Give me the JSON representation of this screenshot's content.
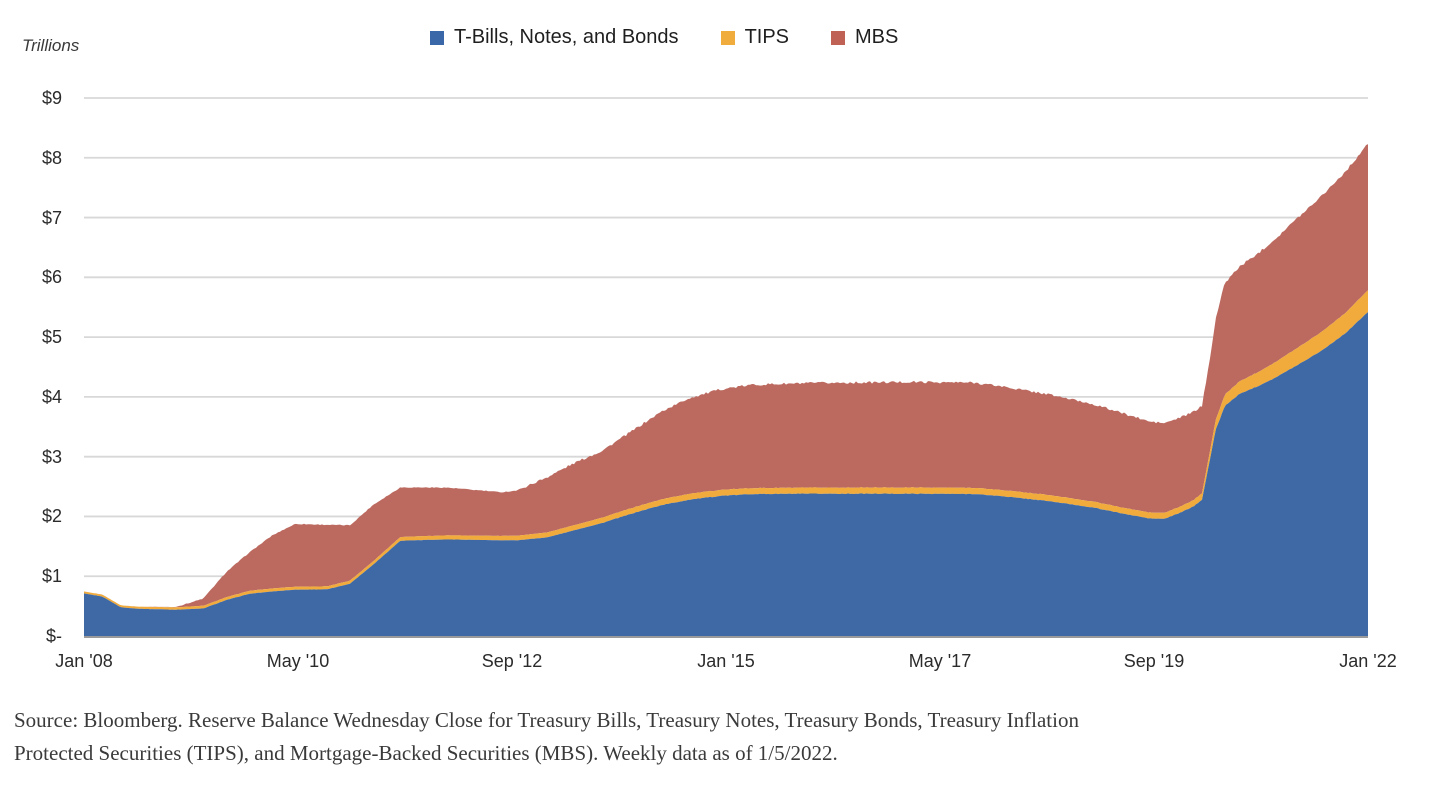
{
  "units_label": "Trillions",
  "legend": [
    {
      "label": "T-Bills, Notes, and Bonds",
      "color": "#3a67a8"
    },
    {
      "label": "TIPS",
      "color": "#f0ac3c"
    },
    {
      "label": "MBS",
      "color": "#c06156"
    }
  ],
  "y_axis": {
    "labels": [
      "$9",
      "$8",
      "$7",
      "$6",
      "$5",
      "$4",
      "$3",
      "$2",
      "$1",
      "$-"
    ],
    "values": [
      9,
      8,
      7,
      6,
      5,
      4,
      3,
      2,
      1,
      0
    ]
  },
  "x_axis": {
    "labels": [
      "Jan '08",
      "May '10",
      "Sep '12",
      "Jan '15",
      "May '17",
      "Sep '19",
      "Jan '22"
    ],
    "tick_years": [
      2008.0,
      2010.333,
      2012.667,
      2015.0,
      2017.333,
      2019.667,
      2022.0
    ]
  },
  "source": {
    "line1": "Source: Bloomberg. Reserve Balance Wednesday Close for Treasury Bills, Treasury Notes, Treasury Bonds, Treasury Inflation",
    "line2": "Protected Securities (TIPS), and Mortgage-Backed Securities (MBS). Weekly data as of 1/5/2022."
  },
  "chart_data": {
    "type": "area",
    "stacked": true,
    "title": "",
    "xlabel": "",
    "ylabel": "Trillions",
    "unit": "trillions of USD",
    "xlim": [
      2008.0,
      2022.0
    ],
    "ylim": [
      0,
      9
    ],
    "grid": "horizontal",
    "legend_position": "top-center",
    "x_keypoints_decimal_year": [
      2008.0,
      2008.2,
      2008.4,
      2008.6,
      2009.0,
      2009.3,
      2009.55,
      2009.8,
      2010.05,
      2010.3,
      2010.65,
      2010.9,
      2011.15,
      2011.45,
      2011.95,
      2012.55,
      2012.72,
      2013.05,
      2013.35,
      2013.65,
      2014.0,
      2014.3,
      2014.6,
      2014.95,
      2015.3,
      2016.0,
      2017.0,
      2017.7,
      2018.0,
      2018.5,
      2019.0,
      2019.35,
      2019.62,
      2019.78,
      2019.95,
      2020.1,
      2020.19,
      2020.27,
      2020.34,
      2020.44,
      2020.6,
      2020.8,
      2021.0,
      2021.25,
      2021.5,
      2021.75,
      2022.0
    ],
    "series": [
      {
        "name": "T-Bills, Notes, and Bonds",
        "color": "#3e69a5",
        "values": [
          0.71,
          0.66,
          0.48,
          0.455,
          0.44,
          0.46,
          0.6,
          0.705,
          0.745,
          0.775,
          0.78,
          0.875,
          1.19,
          1.595,
          1.615,
          1.6,
          1.6,
          1.65,
          1.77,
          1.89,
          2.06,
          2.19,
          2.28,
          2.345,
          2.375,
          2.38,
          2.38,
          2.375,
          2.34,
          2.26,
          2.15,
          2.04,
          1.965,
          1.96,
          2.06,
          2.17,
          2.28,
          2.9,
          3.45,
          3.85,
          4.05,
          4.18,
          4.33,
          4.55,
          4.78,
          5.06,
          5.42
        ]
      },
      {
        "name": "TIPS",
        "color": "#f0ab3c",
        "values": [
          0.033,
          0.033,
          0.033,
          0.035,
          0.04,
          0.045,
          0.048,
          0.05,
          0.05,
          0.05,
          0.05,
          0.052,
          0.056,
          0.062,
          0.068,
          0.075,
          0.078,
          0.082,
          0.086,
          0.09,
          0.094,
          0.098,
          0.1,
          0.1,
          0.1,
          0.102,
          0.104,
          0.104,
          0.103,
          0.102,
          0.1,
          0.1,
          0.1,
          0.1,
          0.102,
          0.105,
          0.11,
          0.135,
          0.165,
          0.19,
          0.21,
          0.235,
          0.26,
          0.29,
          0.315,
          0.34,
          0.365
        ]
      },
      {
        "name": "MBS",
        "color": "#bc6a60",
        "values": [
          0,
          0,
          0,
          0,
          0.005,
          0.12,
          0.42,
          0.64,
          0.885,
          1.05,
          1.03,
          0.925,
          0.945,
          0.83,
          0.8,
          0.73,
          0.755,
          0.925,
          1.04,
          1.12,
          1.3,
          1.47,
          1.6,
          1.685,
          1.73,
          1.75,
          1.765,
          1.76,
          1.735,
          1.685,
          1.63,
          1.575,
          1.52,
          1.5,
          1.49,
          1.475,
          1.46,
          1.55,
          1.7,
          1.87,
          1.92,
          1.985,
          2.07,
          2.18,
          2.28,
          2.36,
          2.45
        ]
      }
    ],
    "colors": {
      "gridline": "#d8d8d8",
      "axis_line": "#9a9a9a",
      "tick_text": "#2b2b2b"
    }
  }
}
